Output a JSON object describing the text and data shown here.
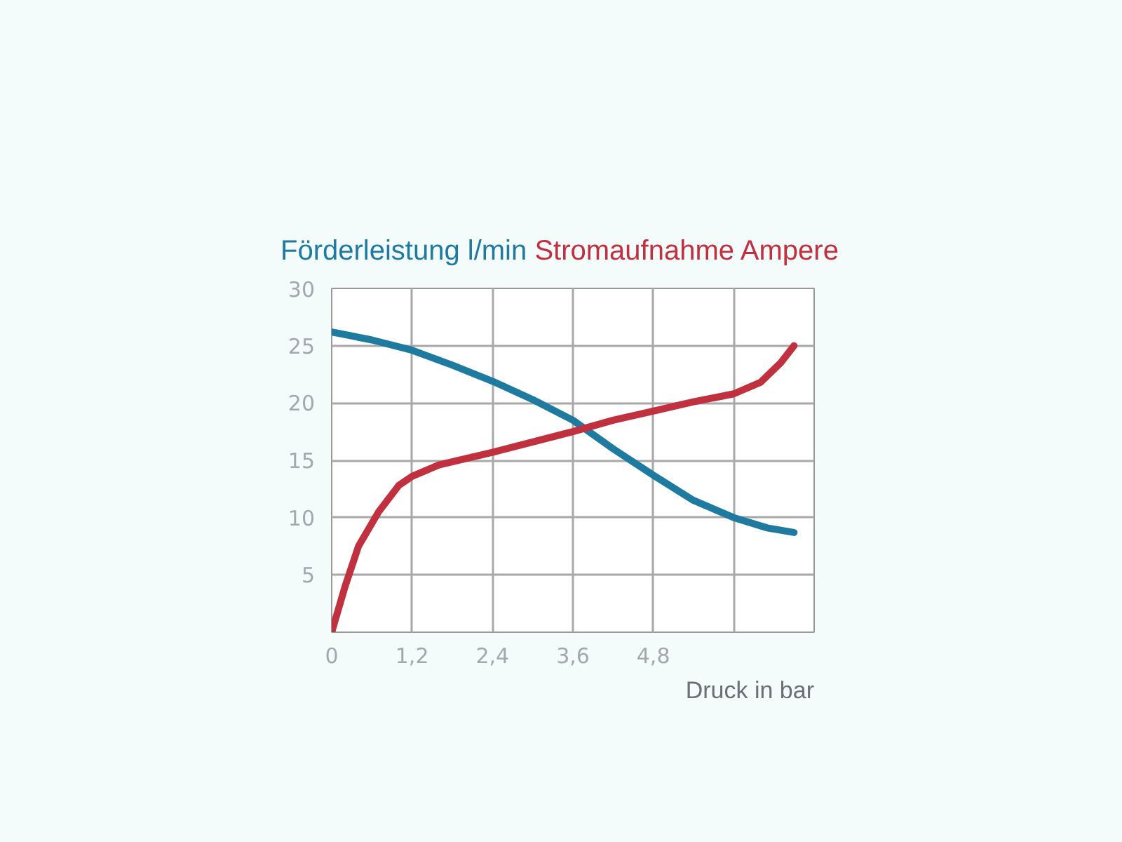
{
  "chart_data": {
    "type": "line",
    "xlabel": "Druck in bar",
    "xlim": [
      0,
      7.2
    ],
    "xticks": [
      0,
      {
        "value": 1.2,
        "label": "1,2"
      },
      {
        "value": 2.4,
        "label": "2,4"
      },
      {
        "value": 3.6,
        "label": "3,6"
      },
      {
        "value": 4.8,
        "label": "4,8"
      },
      {
        "value": 6.0,
        "label": null
      },
      {
        "value": 7.2,
        "label": null
      }
    ],
    "ylim": [
      0,
      30
    ],
    "yticks": [
      {
        "value": 0,
        "label": null
      },
      5,
      10,
      15,
      20,
      25,
      30
    ],
    "grid": true,
    "series": [
      {
        "name": "Förderleistung l/min",
        "color": "#1f7aa0",
        "x": [
          0,
          0.6,
          1.2,
          1.8,
          2.4,
          3.0,
          3.6,
          4.2,
          4.8,
          5.4,
          6.0,
          6.5,
          6.9
        ],
        "values": [
          26.2,
          25.5,
          24.6,
          23.3,
          21.9,
          20.3,
          18.5,
          16.0,
          13.7,
          11.5,
          10.0,
          9.1,
          8.7
        ]
      },
      {
        "name": "Stromaufnahme Ampere",
        "color": "#c0303f",
        "x": [
          0,
          0.2,
          0.4,
          0.7,
          1.0,
          1.2,
          1.6,
          2.4,
          3.0,
          3.6,
          4.2,
          4.8,
          5.4,
          6.0,
          6.4,
          6.7,
          6.9
        ],
        "values": [
          0,
          4,
          7.5,
          10.5,
          12.8,
          13.6,
          14.6,
          15.7,
          16.6,
          17.5,
          18.5,
          19.3,
          20.1,
          20.8,
          21.8,
          23.5,
          25
        ]
      }
    ]
  }
}
